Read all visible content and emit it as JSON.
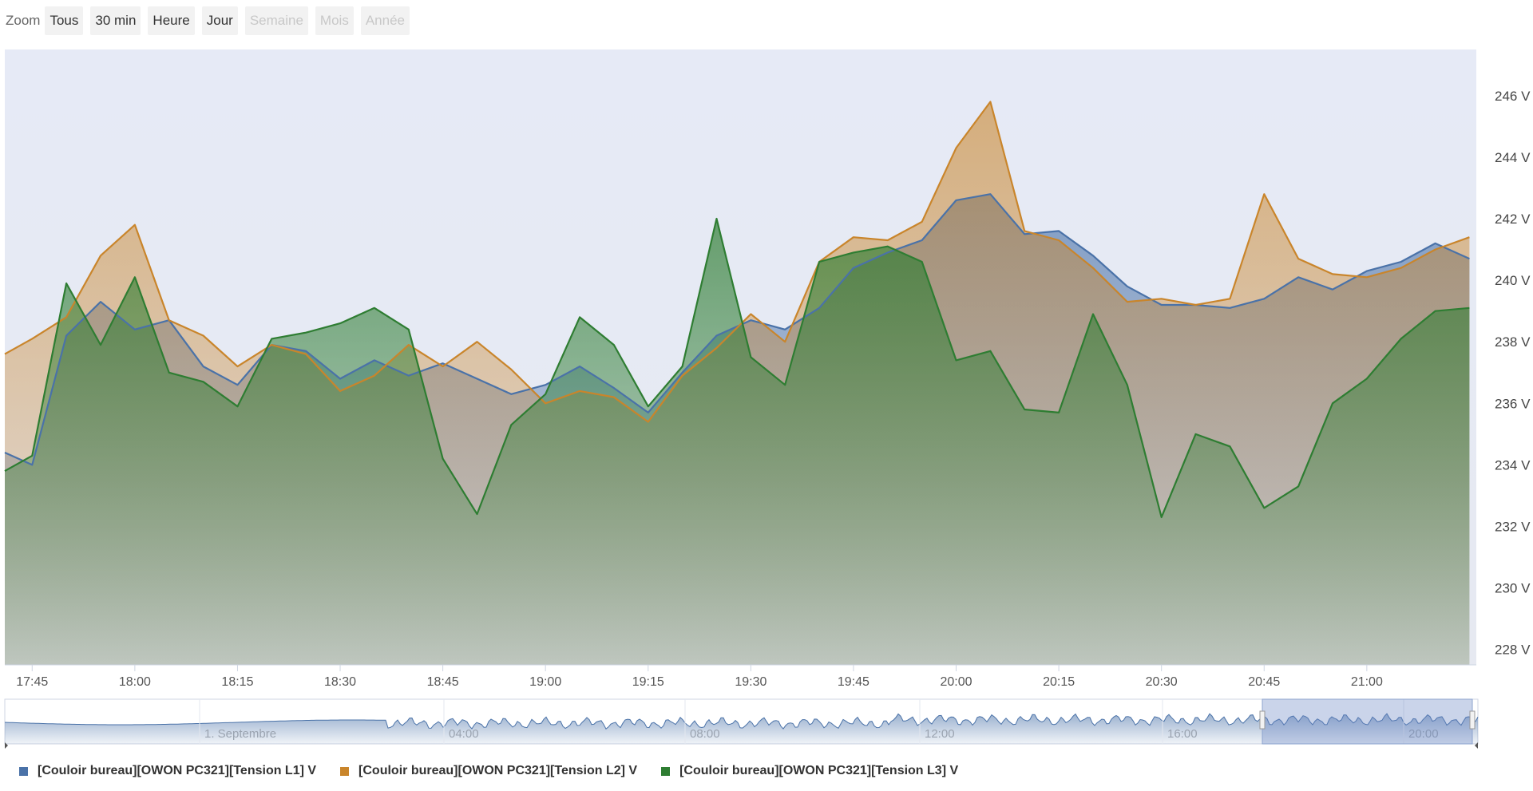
{
  "zoom": {
    "label": "Zoom",
    "buttons": [
      {
        "label": "Tous",
        "enabled": true
      },
      {
        "label": "30 min",
        "enabled": true
      },
      {
        "label": "Heure",
        "enabled": true
      },
      {
        "label": "Jour",
        "enabled": true
      },
      {
        "label": "Semaine",
        "enabled": false
      },
      {
        "label": "Mois",
        "enabled": false
      },
      {
        "label": "Année",
        "enabled": false
      }
    ]
  },
  "chart_data": {
    "type": "area",
    "title": "",
    "xlabel": "",
    "ylabel": "",
    "x_ticks": [
      "17:45",
      "18:00",
      "18:15",
      "18:30",
      "18:45",
      "19:00",
      "19:15",
      "19:30",
      "19:45",
      "20:00",
      "20:15",
      "20:30",
      "20:45",
      "21:00"
    ],
    "y_ticks": [
      "228 V",
      "230 V",
      "232 V",
      "234 V",
      "236 V",
      "238 V",
      "240 V",
      "242 V",
      "244 V",
      "246 V"
    ],
    "xlim": [
      "17:41",
      "21:16"
    ],
    "ylim": [
      227.5,
      247.5
    ],
    "grid": false,
    "legend_position": "bottom-left",
    "x": [
      "17:41",
      "17:45",
      "17:50",
      "17:55",
      "18:00",
      "18:05",
      "18:10",
      "18:15",
      "18:20",
      "18:25",
      "18:30",
      "18:35",
      "18:40",
      "18:45",
      "18:50",
      "18:55",
      "19:00",
      "19:05",
      "19:10",
      "19:15",
      "19:20",
      "19:25",
      "19:30",
      "19:35",
      "19:40",
      "19:45",
      "19:50",
      "19:55",
      "20:00",
      "20:05",
      "20:10",
      "20:15",
      "20:20",
      "20:25",
      "20:30",
      "20:35",
      "20:40",
      "20:45",
      "20:50",
      "20:55",
      "21:00",
      "21:05",
      "21:10",
      "21:15"
    ],
    "series": [
      {
        "name": "[Couloir bureau][OWON PC321][Tension L1] V",
        "color": "#4a72a8",
        "values": [
          234.4,
          234.0,
          238.2,
          239.3,
          238.4,
          238.7,
          237.2,
          236.6,
          237.9,
          237.7,
          236.8,
          237.4,
          236.9,
          237.3,
          236.8,
          236.3,
          236.6,
          237.2,
          236.5,
          235.7,
          237.0,
          238.2,
          238.7,
          238.4,
          239.1,
          240.4,
          240.9,
          241.3,
          242.6,
          242.8,
          241.5,
          241.6,
          240.8,
          239.8,
          239.2,
          239.2,
          239.1,
          239.4,
          240.1,
          239.7,
          240.3,
          240.6,
          241.2,
          240.7
        ]
      },
      {
        "name": "[Couloir bureau][OWON PC321][Tension L2] V",
        "color": "#c9852b",
        "values": [
          237.6,
          238.1,
          238.8,
          240.8,
          241.8,
          238.7,
          238.2,
          237.2,
          237.9,
          237.6,
          236.4,
          236.9,
          237.9,
          237.2,
          238.0,
          237.1,
          236.0,
          236.4,
          236.2,
          235.4,
          236.9,
          237.8,
          238.9,
          238.0,
          240.6,
          241.4,
          241.3,
          241.9,
          244.3,
          245.8,
          241.6,
          241.3,
          240.4,
          239.3,
          239.4,
          239.2,
          239.4,
          242.8,
          240.7,
          240.2,
          240.1,
          240.4,
          241.0,
          241.4
        ]
      },
      {
        "name": "[Couloir bureau][OWON PC321][Tension L3] V",
        "color": "#2e7d32",
        "values": [
          233.8,
          234.3,
          239.9,
          237.9,
          240.1,
          237.0,
          236.7,
          235.9,
          238.1,
          238.3,
          238.6,
          239.1,
          238.4,
          234.2,
          232.4,
          235.3,
          236.3,
          238.8,
          237.9,
          235.9,
          237.2,
          242.0,
          237.5,
          236.6,
          240.6,
          240.9,
          241.1,
          240.6,
          237.4,
          237.7,
          235.8,
          235.7,
          238.9,
          236.6,
          232.3,
          235.0,
          234.6,
          232.6,
          233.3,
          236.0,
          236.8,
          238.1,
          239.0,
          239.1
        ]
      }
    ]
  },
  "navigator": {
    "ticks": [
      "1. Septembre",
      "04:00",
      "08:00",
      "12:00",
      "16:00",
      "20:00"
    ]
  }
}
